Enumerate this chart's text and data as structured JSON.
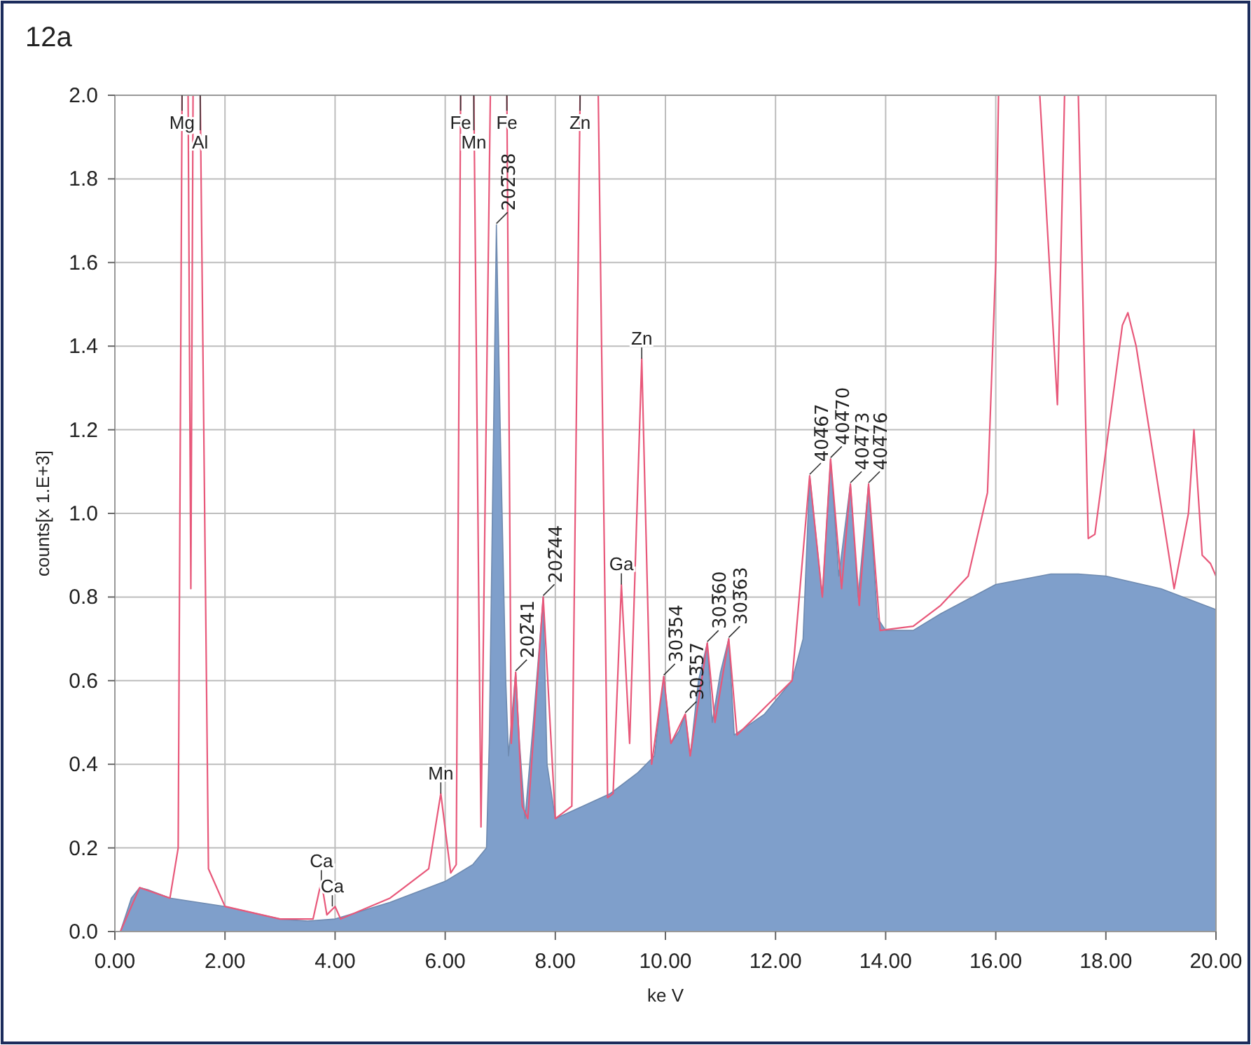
{
  "chart_data": {
    "type": "area",
    "title": "12a",
    "xlabel": "ke V",
    "ylabel": "counts[x 1.E+3]",
    "xlim": [
      0,
      20
    ],
    "xticks": [
      {
        "value": 0,
        "label": "0.00"
      },
      {
        "value": 2,
        "label": "2.00"
      },
      {
        "value": 4,
        "label": "4.00"
      },
      {
        "value": 6,
        "label": "6.00"
      },
      {
        "value": 8,
        "label": "8.00"
      },
      {
        "value": 10,
        "label": "10.00"
      },
      {
        "value": 12,
        "label": "12.00"
      },
      {
        "value": 14,
        "label": "14.00"
      },
      {
        "value": 16,
        "label": "16.00"
      },
      {
        "value": 18,
        "label": "18.00"
      },
      {
        "value": 20,
        "label": "20.00"
      }
    ],
    "ylim": [
      0,
      2
    ],
    "yticks": [
      {
        "value": 0,
        "label": "0.0"
      },
      {
        "value": 0.2,
        "label": "0.2"
      },
      {
        "value": 0.4,
        "label": "0.4"
      },
      {
        "value": 0.6,
        "label": "0.6"
      },
      {
        "value": 0.8,
        "label": "0.8"
      },
      {
        "value": 1,
        "label": "1.0"
      },
      {
        "value": 1.2,
        "label": "1.2"
      },
      {
        "value": 1.4,
        "label": "1.4"
      },
      {
        "value": 1.6,
        "label": "1.6"
      },
      {
        "value": 1.8,
        "label": "1.8"
      },
      {
        "value": 2,
        "label": "2.0"
      }
    ],
    "grid": true,
    "series": [
      {
        "color": "#7f9fcb",
        "x": [
          0.1,
          0.3,
          0.45,
          0.6,
          1.0,
          2.0,
          3.0,
          3.5,
          4.0,
          5.0,
          6.0,
          6.5,
          6.75,
          6.8,
          6.93,
          7.0,
          7.1,
          7.15,
          7.28,
          7.35,
          7.45,
          7.6,
          7.78,
          7.85,
          8.0,
          8.5,
          9.0,
          9.5,
          9.8,
          9.97,
          10.1,
          10.25,
          10.36,
          10.45,
          10.6,
          10.76,
          10.85,
          11.0,
          11.15,
          11.25,
          11.8,
          12.3,
          12.5,
          12.62,
          12.85,
          13.0,
          13.15,
          13.36,
          13.5,
          13.69,
          13.85,
          14.0,
          14.5,
          15.0,
          16.0,
          17.0,
          17.5,
          18.0,
          19.0,
          20.0
        ],
        "values": [
          0,
          0.08,
          0.105,
          0.1,
          0.08,
          0.06,
          0.03,
          0.025,
          0.03,
          0.07,
          0.12,
          0.16,
          0.2,
          0.45,
          1.69,
          1.2,
          0.6,
          0.42,
          0.62,
          0.45,
          0.27,
          0.5,
          0.8,
          0.4,
          0.27,
          0.3,
          0.33,
          0.38,
          0.42,
          0.61,
          0.45,
          0.48,
          0.52,
          0.42,
          0.6,
          0.69,
          0.5,
          0.62,
          0.7,
          0.47,
          0.52,
          0.6,
          0.7,
          1.09,
          0.8,
          1.13,
          0.85,
          1.07,
          0.8,
          1.07,
          0.75,
          0.72,
          0.72,
          0.76,
          0.83,
          0.855,
          0.855,
          0.85,
          0.82,
          0.77
        ]
      },
      {
        "type": "line",
        "color": "#e8587a",
        "x": [
          0.1,
          0.45,
          1.0,
          1.15,
          1.22,
          1.27,
          1.33,
          1.38,
          1.42,
          1.5,
          1.55,
          1.7,
          2.0,
          3.0,
          3.6,
          3.75,
          3.85,
          4.0,
          4.1,
          5.0,
          5.7,
          5.92,
          6.1,
          6.2,
          6.28,
          6.4,
          6.52,
          6.65,
          6.82,
          7.0,
          7.12,
          7.2,
          7.28,
          7.4,
          7.5,
          7.78,
          8.0,
          8.3,
          8.45,
          8.6,
          8.78,
          8.95,
          9.05,
          9.2,
          9.35,
          9.57,
          9.75,
          9.97,
          10.1,
          10.36,
          10.45,
          10.76,
          10.9,
          11.15,
          11.3,
          12.3,
          12.62,
          12.85,
          13.0,
          13.2,
          13.36,
          13.52,
          13.69,
          13.9,
          14.5,
          15.0,
          15.5,
          15.85,
          16.0,
          16.05,
          16.4,
          16.8,
          17.12,
          17.25,
          17.4,
          17.5,
          17.68,
          17.8,
          18.3,
          18.4,
          18.55,
          19.24,
          19.5,
          19.6,
          19.75,
          19.9,
          20.0
        ],
        "values": [
          0,
          0.105,
          0.08,
          0.2,
          2.0,
          null,
          2.0,
          0.82,
          2.0,
          null,
          2.0,
          0.15,
          0.06,
          0.03,
          0.03,
          0.12,
          0.04,
          0.06,
          0.03,
          0.08,
          0.15,
          0.33,
          0.14,
          0.16,
          2.0,
          null,
          2.0,
          0.25,
          2.0,
          null,
          2.0,
          0.45,
          0.62,
          0.3,
          0.27,
          0.8,
          0.27,
          0.3,
          2.0,
          null,
          2.0,
          0.32,
          0.33,
          0.83,
          0.45,
          1.37,
          0.4,
          0.61,
          0.45,
          0.52,
          0.42,
          0.69,
          0.5,
          0.7,
          0.47,
          0.6,
          1.09,
          0.8,
          1.13,
          0.82,
          1.07,
          0.78,
          1.07,
          0.72,
          0.73,
          0.78,
          0.85,
          1.05,
          1.6,
          2.0,
          null,
          2.0,
          1.26,
          2.0,
          null,
          2.0,
          0.94,
          0.95,
          1.45,
          1.48,
          1.4,
          0.82,
          1.0,
          1.2,
          0.9,
          0.88,
          0.85
        ]
      }
    ],
    "annotations": [
      {
        "text": "Mg",
        "x": 1.22,
        "y": 2.0
      },
      {
        "text": "Al",
        "x": 1.55,
        "y": 2.0
      },
      {
        "text": "Fe",
        "x": 6.28,
        "y": 2.0
      },
      {
        "text": "Mn",
        "x": 6.52,
        "y": 2.0
      },
      {
        "text": "Fe",
        "x": 7.12,
        "y": 2.0
      },
      {
        "text": "Zn",
        "x": 8.45,
        "y": 2.0
      },
      {
        "text": "Ca",
        "x": 3.75,
        "y": 0.12
      },
      {
        "text": "Ca",
        "x": 3.95,
        "y": 0.06
      },
      {
        "text": "Mn",
        "x": 5.92,
        "y": 0.33
      },
      {
        "text": "Ga",
        "x": 9.2,
        "y": 0.83
      },
      {
        "text": "Zn",
        "x": 9.57,
        "y": 1.37
      },
      {
        "text": "202̅38",
        "x": 6.93,
        "y": 1.69
      },
      {
        "text": "202̅41",
        "x": 7.28,
        "y": 0.62
      },
      {
        "text": "202̅44",
        "x": 7.78,
        "y": 0.8
      },
      {
        "text": "303̅54",
        "x": 9.97,
        "y": 0.61
      },
      {
        "text": "303̅57",
        "x": 10.36,
        "y": 0.52
      },
      {
        "text": "303̅60",
        "x": 10.76,
        "y": 0.69
      },
      {
        "text": "303̅63",
        "x": 11.15,
        "y": 0.7
      },
      {
        "text": "404̅67",
        "x": 12.62,
        "y": 1.09
      },
      {
        "text": "404̅70",
        "x": 13.0,
        "y": 1.13
      },
      {
        "text": "404̅73",
        "x": 13.36,
        "y": 1.07
      },
      {
        "text": "404̅76",
        "x": 13.69,
        "y": 1.07
      }
    ]
  }
}
